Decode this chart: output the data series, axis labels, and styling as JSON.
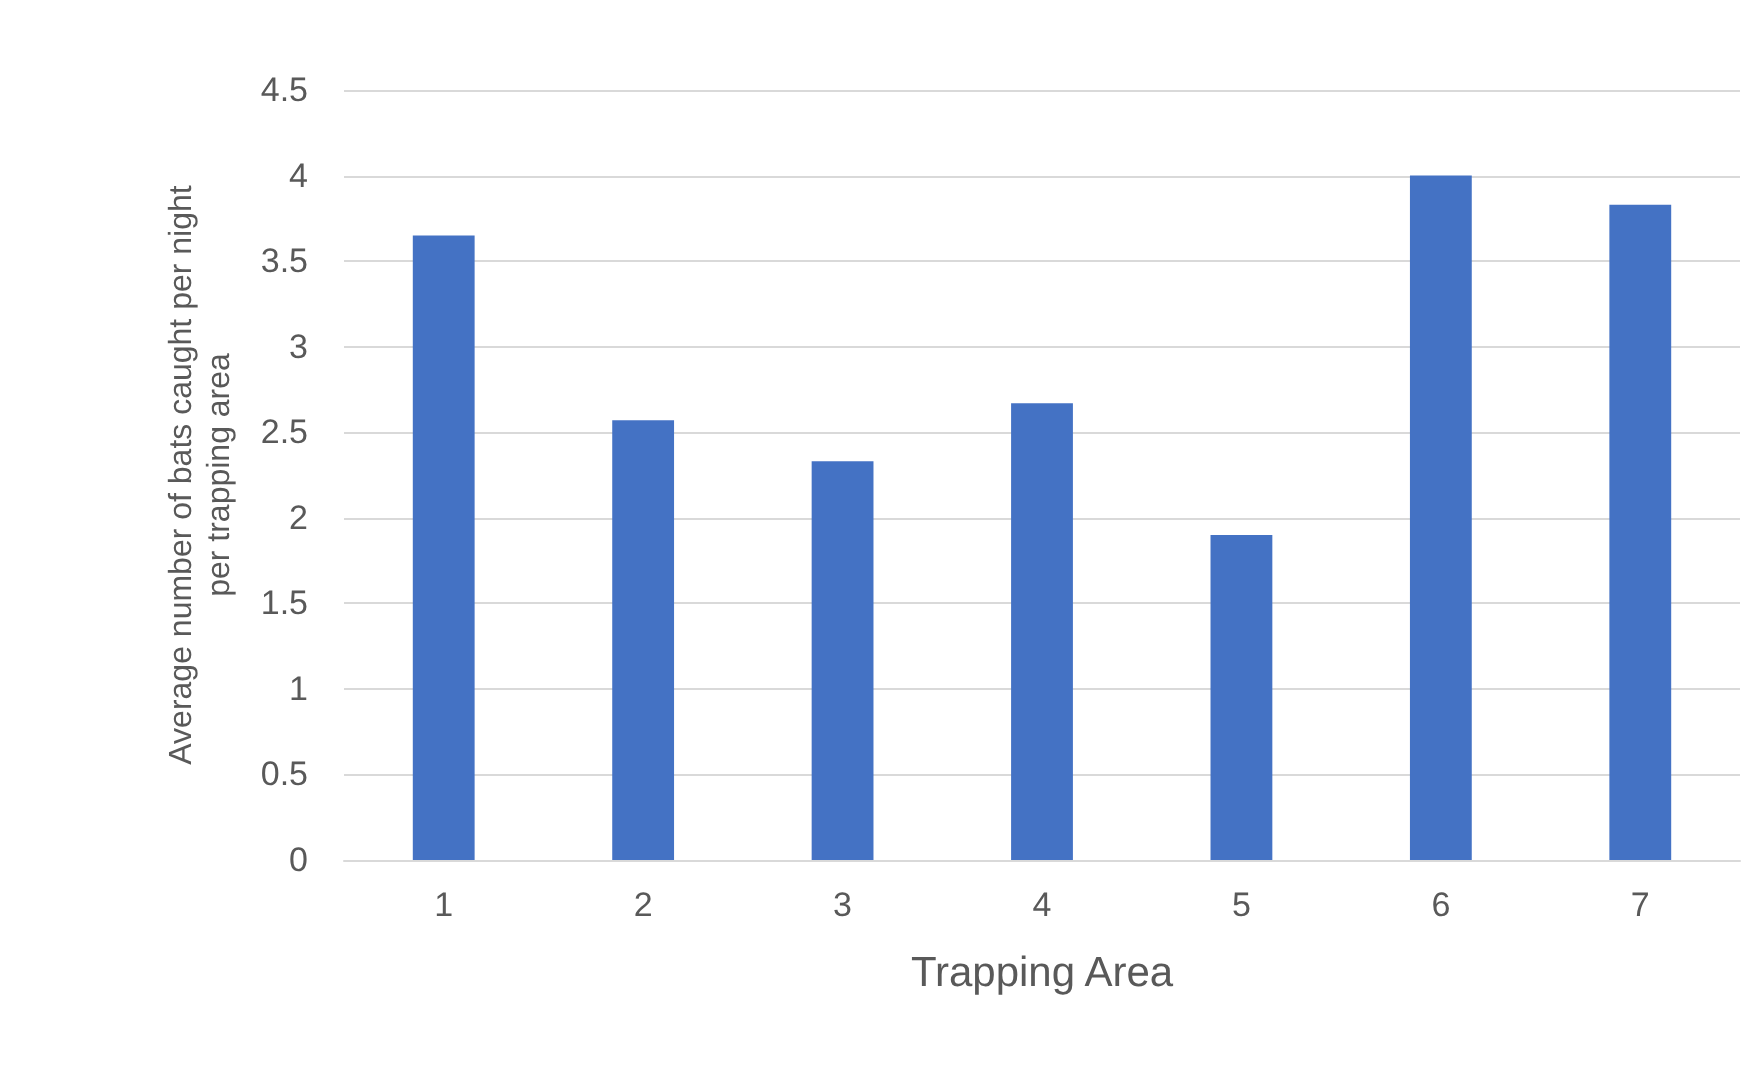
{
  "chart_data": {
    "type": "bar",
    "xlabel": "Trapping Area",
    "ylabel": "Average number of bats caught per night\nper trapping area",
    "categories": [
      "1",
      "2",
      "3",
      "4",
      "5",
      "6",
      "7"
    ],
    "values": [
      3.65,
      2.57,
      2.33,
      2.67,
      1.9,
      4.0,
      3.83
    ],
    "color": "#4472c4",
    "ylim": [
      0,
      4.5
    ],
    "yticks": [
      0,
      0.5,
      1,
      1.5,
      2,
      2.5,
      3,
      3.5,
      4,
      4.5
    ],
    "grid": "y"
  }
}
